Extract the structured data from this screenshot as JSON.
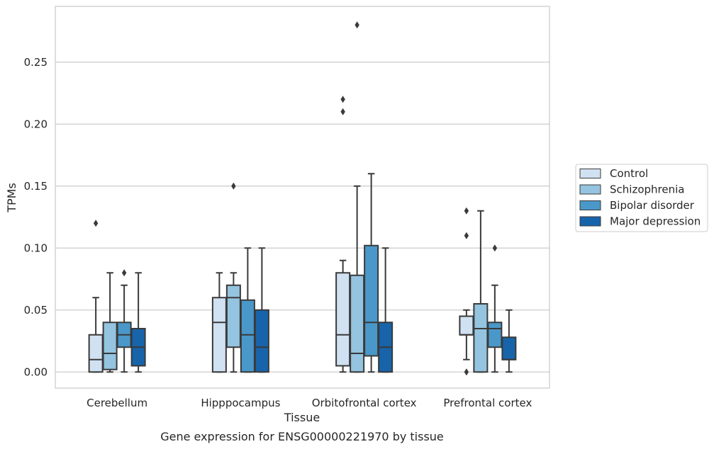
{
  "chart_data": {
    "type": "box",
    "caption": "Gene expression for ENSG00000221970 by tissue",
    "xlabel": "Tissue",
    "ylabel": "TPMs",
    "ylim": [
      -0.013,
      0.295
    ],
    "yticks": [
      0.0,
      0.05,
      0.1,
      0.15,
      0.2,
      0.25
    ],
    "ytick_labels": [
      "0.00",
      "0.05",
      "0.10",
      "0.15",
      "0.20",
      "0.25"
    ],
    "grid": "horizontal",
    "legend_position": "right",
    "categories": [
      "Cerebellum",
      "Hipppocampus",
      "Orbitofrontal cortex",
      "Prefrontal cortex"
    ],
    "series": [
      {
        "name": "Control",
        "color": "#d0e1f2",
        "boxes": [
          {
            "whislo": 0.0,
            "q1": 0.0,
            "med": 0.01,
            "q3": 0.03,
            "whishi": 0.06,
            "fliers": [
              0.12
            ]
          },
          {
            "whislo": 0.0,
            "q1": 0.0,
            "med": 0.04,
            "q3": 0.06,
            "whishi": 0.08,
            "fliers": []
          },
          {
            "whislo": 0.0,
            "q1": 0.005,
            "med": 0.03,
            "q3": 0.08,
            "whishi": 0.09,
            "fliers": [
              0.21,
              0.22
            ]
          },
          {
            "whislo": 0.01,
            "q1": 0.03,
            "med": 0.03,
            "q3": 0.045,
            "whishi": 0.05,
            "fliers": [
              0.0,
              0.11,
              0.13
            ]
          }
        ]
      },
      {
        "name": "Schizophrenia",
        "color": "#94c4df",
        "boxes": [
          {
            "whislo": 0.0,
            "q1": 0.002,
            "med": 0.015,
            "q3": 0.04,
            "whishi": 0.08,
            "fliers": []
          },
          {
            "whislo": 0.0,
            "q1": 0.02,
            "med": 0.06,
            "q3": 0.07,
            "whishi": 0.08,
            "fliers": [
              0.15
            ]
          },
          {
            "whislo": 0.0,
            "q1": 0.0,
            "med": 0.015,
            "q3": 0.078,
            "whishi": 0.15,
            "fliers": [
              0.28
            ]
          },
          {
            "whislo": 0.0,
            "q1": 0.0,
            "med": 0.035,
            "q3": 0.055,
            "whishi": 0.13,
            "fliers": []
          }
        ]
      },
      {
        "name": "Bipolar disorder",
        "color": "#4a98c9",
        "boxes": [
          {
            "whislo": 0.0,
            "q1": 0.02,
            "med": 0.03,
            "q3": 0.04,
            "whishi": 0.07,
            "fliers": [
              0.08
            ]
          },
          {
            "whislo": 0.0,
            "q1": 0.0,
            "med": 0.03,
            "q3": 0.058,
            "whishi": 0.1,
            "fliers": []
          },
          {
            "whislo": 0.0,
            "q1": 0.013,
            "med": 0.04,
            "q3": 0.102,
            "whishi": 0.16,
            "fliers": []
          },
          {
            "whislo": 0.0,
            "q1": 0.02,
            "med": 0.035,
            "q3": 0.04,
            "whishi": 0.07,
            "fliers": [
              0.1
            ]
          }
        ]
      },
      {
        "name": "Major depression",
        "color": "#1764ab",
        "boxes": [
          {
            "whislo": 0.0,
            "q1": 0.005,
            "med": 0.02,
            "q3": 0.035,
            "whishi": 0.08,
            "fliers": []
          },
          {
            "whislo": 0.0,
            "q1": 0.0,
            "med": 0.02,
            "q3": 0.05,
            "whishi": 0.1,
            "fliers": []
          },
          {
            "whislo": 0.0,
            "q1": 0.0,
            "med": 0.02,
            "q3": 0.04,
            "whishi": 0.1,
            "fliers": []
          },
          {
            "whislo": 0.0,
            "q1": 0.01,
            "med": 0.01,
            "q3": 0.028,
            "whishi": 0.05,
            "fliers": []
          }
        ]
      }
    ]
  }
}
